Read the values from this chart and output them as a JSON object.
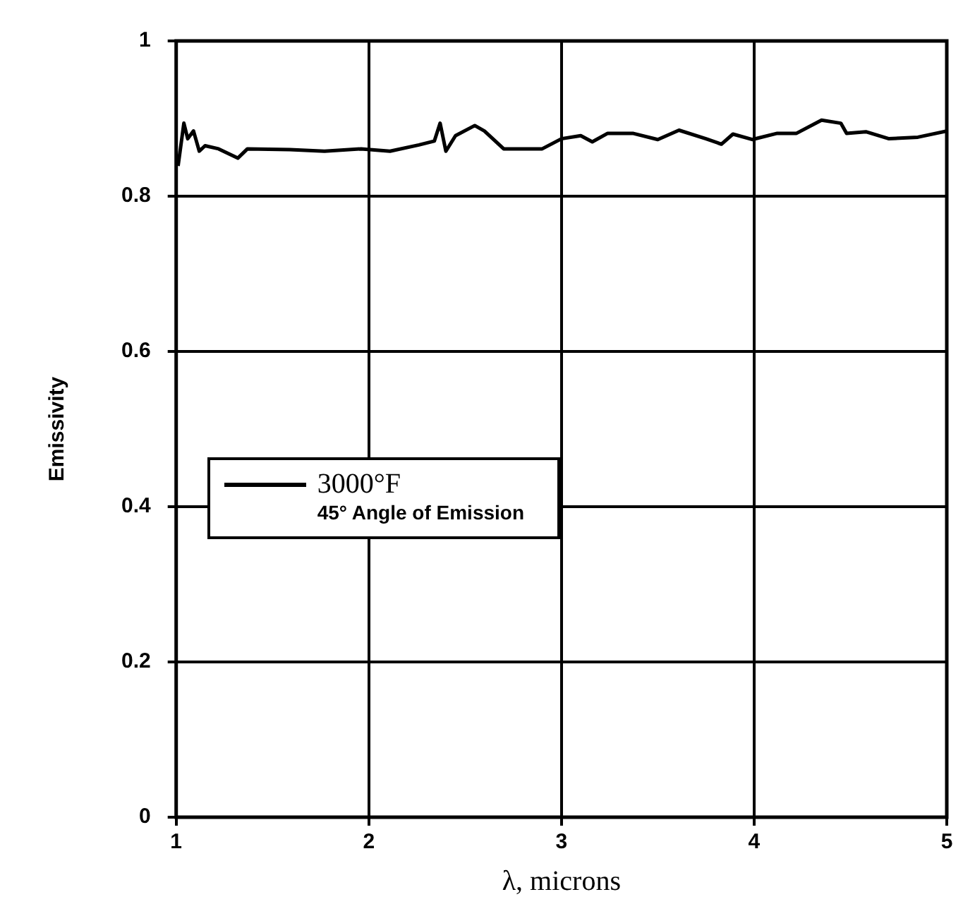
{
  "chart_data": {
    "type": "line",
    "xlabel": "λ, microns",
    "ylabel": "Emissivity",
    "xlim": [
      1,
      5
    ],
    "xticks": [
      1,
      2,
      3,
      4,
      5
    ],
    "ylim": [
      0,
      1
    ],
    "yticks": [
      0,
      0.2,
      0.4,
      0.6,
      0.8,
      1
    ],
    "grid": true,
    "legend": "center left",
    "marker": "none",
    "line_style": "solid",
    "annotations": [
      "45° Angle of Emission"
    ],
    "series": [
      {
        "name": "3000°F",
        "color": "#000000",
        "x": [
          1.01,
          1.04,
          1.06,
          1.09,
          1.12,
          1.15,
          1.22,
          1.32,
          1.37,
          1.59,
          1.77,
          1.96,
          2.11,
          2.26,
          2.34,
          2.37,
          2.4,
          2.45,
          2.55,
          2.6,
          2.7,
          2.9,
          3.0,
          3.1,
          3.16,
          3.24,
          3.37,
          3.5,
          3.61,
          3.75,
          3.83,
          3.89,
          3.99,
          4.12,
          4.22,
          4.35,
          4.45,
          4.48,
          4.58,
          4.7,
          4.85,
          5.0
        ],
        "values": [
          0.839,
          0.894,
          0.874,
          0.884,
          0.858,
          0.865,
          0.861,
          0.849,
          0.861,
          0.86,
          0.858,
          0.861,
          0.858,
          0.866,
          0.871,
          0.894,
          0.858,
          0.878,
          0.891,
          0.884,
          0.861,
          0.861,
          0.874,
          0.878,
          0.87,
          0.881,
          0.881,
          0.873,
          0.885,
          0.874,
          0.867,
          0.88,
          0.873,
          0.881,
          0.881,
          0.898,
          0.894,
          0.881,
          0.883,
          0.874,
          0.876,
          0.884
        ]
      }
    ]
  }
}
